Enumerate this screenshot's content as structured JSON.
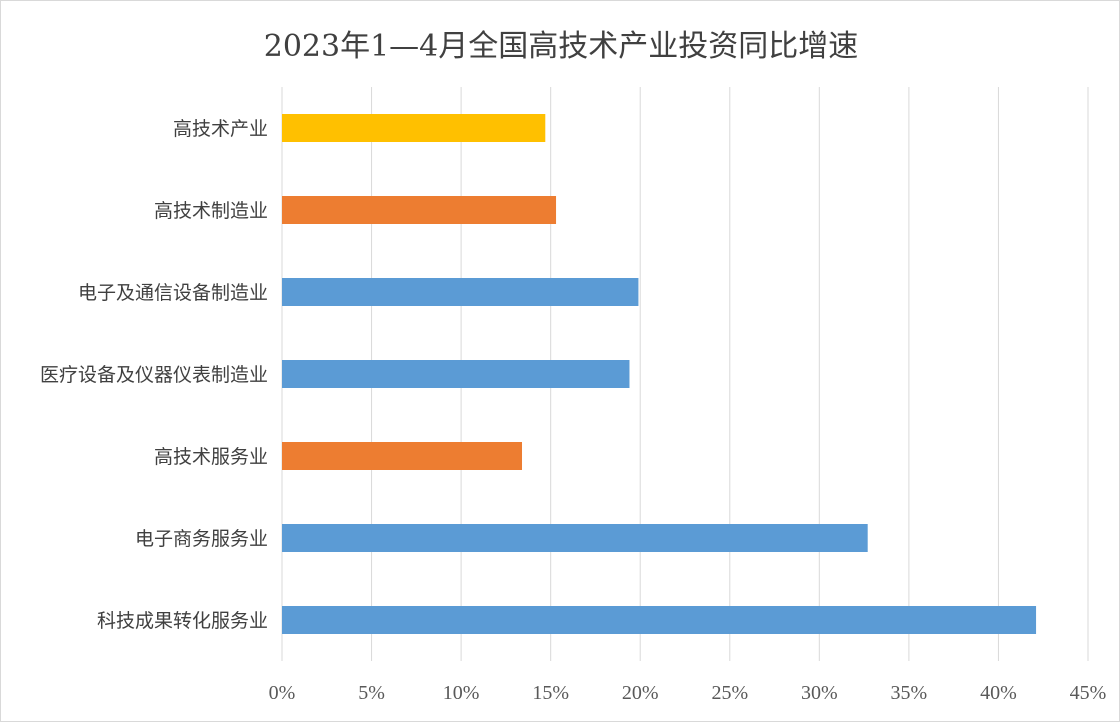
{
  "chart_data": {
    "type": "bar",
    "orientation": "horizontal",
    "title": "2023年1—4月全国高技术产业投资同比增速",
    "categories": [
      "高技术产业",
      "高技术制造业",
      "电子及通信设备制造业",
      "医疗设备及仪器仪表制造业",
      "高技术服务业",
      "电子商务服务业",
      "科技成果转化服务业"
    ],
    "values": [
      14.7,
      15.3,
      19.9,
      19.4,
      13.4,
      32.7,
      42.1
    ],
    "colors": [
      "#FFC000",
      "#ED7D31",
      "#5B9BD5",
      "#5B9BD5",
      "#ED7D31",
      "#5B9BD5",
      "#5B9BD5"
    ],
    "xlim": [
      0,
      45
    ],
    "xticks": [
      0,
      5,
      10,
      15,
      20,
      25,
      30,
      35,
      40,
      45
    ],
    "xtick_labels": [
      "0%",
      "5%",
      "10%",
      "15%",
      "20%",
      "25%",
      "30%",
      "35%",
      "40%",
      "45%"
    ],
    "xlabel": "",
    "ylabel": "",
    "grid": "vertical",
    "legend": "none"
  }
}
